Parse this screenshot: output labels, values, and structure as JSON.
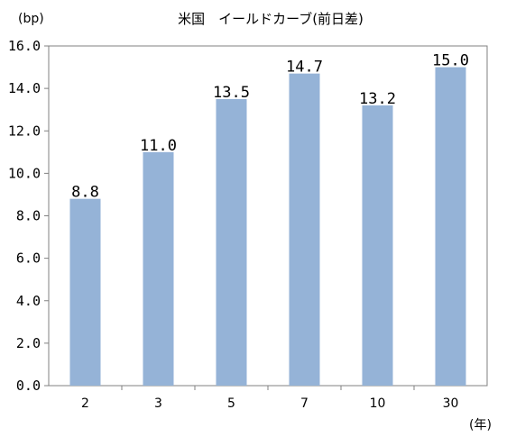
{
  "chart_data": {
    "type": "bar",
    "title": "米国　イールドカーブ(前日差)",
    "ylabel": "(bp)",
    "xlabel": "(年)",
    "categories": [
      "2",
      "3",
      "5",
      "7",
      "10",
      "30"
    ],
    "values": [
      8.8,
      11.0,
      13.5,
      14.7,
      13.2,
      15.0
    ],
    "data_labels": [
      "8.8",
      "11.0",
      "13.5",
      "14.7",
      "13.2",
      "15.0"
    ],
    "ylim": [
      0,
      16
    ],
    "yticks": [
      "0.0",
      "2.0",
      "4.0",
      "6.0",
      "8.0",
      "10.0",
      "12.0",
      "14.0",
      "16.0"
    ],
    "grid": false,
    "legend": "none",
    "colors": {
      "bar": "#95b3d7",
      "axis": "#808080",
      "text": "#000000"
    }
  }
}
